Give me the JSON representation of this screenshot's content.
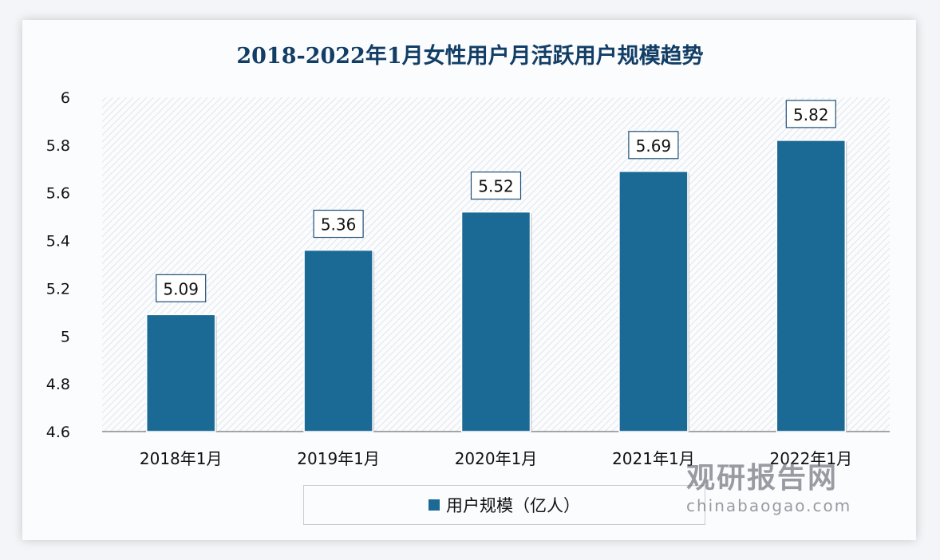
{
  "chart_data": {
    "type": "bar",
    "title": "2018-2022年1月女性用户月活跃用户规模趋势",
    "categories": [
      "2018年1月",
      "2019年1月",
      "2020年1月",
      "2021年1月",
      "2022年1月"
    ],
    "series": [
      {
        "name": "用户规模（亿人）",
        "values": [
          5.09,
          5.36,
          5.52,
          5.69,
          5.82
        ]
      }
    ],
    "data_labels": [
      "5.09",
      "5.36",
      "5.52",
      "5.69",
      "5.82"
    ],
    "yticks": [
      "4.6",
      "4.8",
      "5",
      "5.2",
      "5.4",
      "5.6",
      "5.8",
      "6"
    ],
    "ylim": [
      4.6,
      6
    ],
    "xlabel": "",
    "ylabel": "",
    "grid": false,
    "legend": "bottom",
    "bar_color": "#1b6a96"
  },
  "watermark": {
    "name": "观研报告网",
    "url": "chinabaogao.com"
  }
}
